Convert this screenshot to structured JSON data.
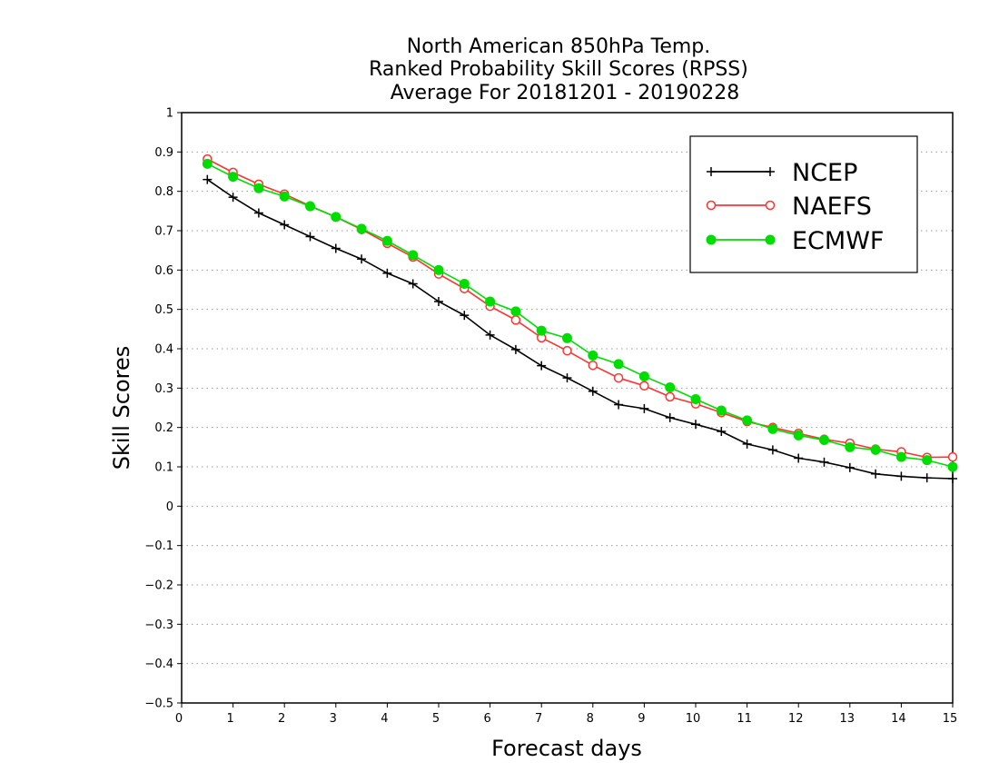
{
  "chart_data": {
    "type": "line",
    "title": "North American 850hPa Temp.",
    "subtitle_lines": [
      "Ranked Probability Skill Scores (RPSS)",
      "Average For 20181201 - 20190228"
    ],
    "xlabel": "Forecast days",
    "ylabel": "Skill Scores",
    "xlim": [
      0,
      15
    ],
    "ylim": [
      -0.5,
      1
    ],
    "x_ticks": [
      "0",
      "1",
      "2",
      "3",
      "4",
      "5",
      "6",
      "7",
      "8",
      "9",
      "10",
      "11",
      "12",
      "13",
      "14",
      "15"
    ],
    "y_ticks": [
      "1",
      "0.9",
      "0.8",
      "0.7",
      "0.6",
      "0.5",
      "0.4",
      "0.3",
      "0.2",
      "0.1",
      "0",
      "−0.1",
      "−0.2",
      "−0.3",
      "−0.4",
      "−0.5"
    ],
    "y_tick_values": [
      1,
      0.9,
      0.8,
      0.7,
      0.6,
      0.5,
      0.4,
      0.3,
      0.2,
      0.1,
      0,
      -0.1,
      -0.2,
      -0.3,
      -0.4,
      -0.5
    ],
    "grid": "horizontal dotted",
    "legend_position": "top-right",
    "x": [
      0.5,
      1,
      1.5,
      2,
      2.5,
      3,
      3.5,
      4,
      4.5,
      5,
      5.5,
      6,
      6.5,
      7,
      7.5,
      8,
      8.5,
      9,
      9.5,
      10,
      10.5,
      11,
      11.5,
      12,
      12.5,
      13,
      13.5,
      14,
      14.5,
      15
    ],
    "series": [
      {
        "name": "NCEP",
        "color": "#000000",
        "marker": "plus",
        "values": [
          0.83,
          0.785,
          0.745,
          0.715,
          0.685,
          0.655,
          0.628,
          0.592,
          0.565,
          0.52,
          0.485,
          0.435,
          0.398,
          0.357,
          0.326,
          0.292,
          0.258,
          0.248,
          0.225,
          0.208,
          0.19,
          0.158,
          0.143,
          0.122,
          0.112,
          0.098,
          0.082,
          0.076,
          0.072,
          0.07
        ]
      },
      {
        "name": "NAEFS",
        "color": "#ff3333",
        "marker": "open-circle",
        "values": [
          0.882,
          0.848,
          0.818,
          0.793,
          0.763,
          0.735,
          0.703,
          0.668,
          0.633,
          0.59,
          0.553,
          0.508,
          0.473,
          0.428,
          0.395,
          0.358,
          0.326,
          0.306,
          0.278,
          0.26,
          0.238,
          0.215,
          0.2,
          0.185,
          0.17,
          0.16,
          0.145,
          0.138,
          0.124,
          0.125
        ]
      },
      {
        "name": "ECMWF",
        "color": "#00dd00",
        "marker": "filled-circle",
        "values": [
          0.87,
          0.837,
          0.808,
          0.787,
          0.762,
          0.735,
          0.705,
          0.674,
          0.638,
          0.6,
          0.565,
          0.52,
          0.495,
          0.446,
          0.427,
          0.383,
          0.361,
          0.33,
          0.302,
          0.272,
          0.243,
          0.218,
          0.196,
          0.18,
          0.168,
          0.15,
          0.143,
          0.125,
          0.117,
          0.1
        ]
      }
    ]
  },
  "legend": {
    "items": [
      {
        "label": "NCEP"
      },
      {
        "label": "NAEFS"
      },
      {
        "label": "ECMWF"
      }
    ]
  }
}
